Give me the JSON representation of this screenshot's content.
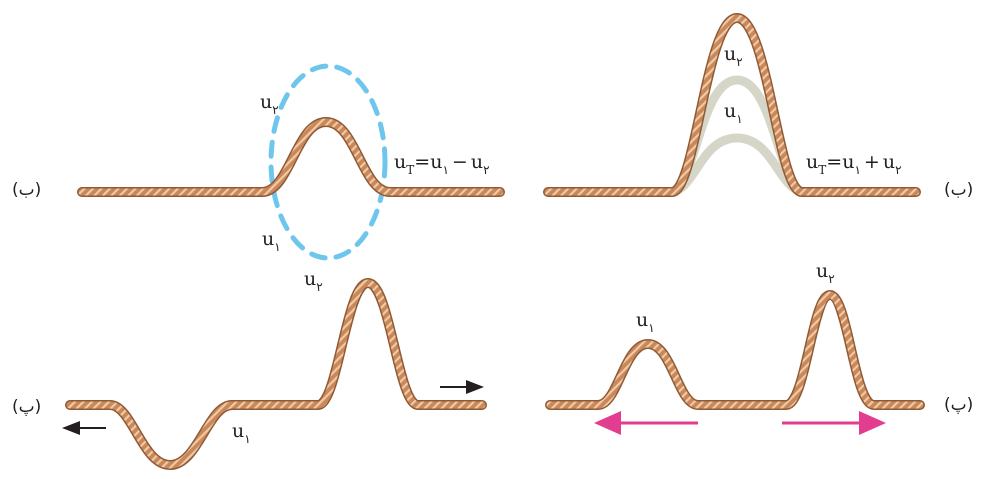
{
  "colors": {
    "rope": "#c9875a",
    "rope_dark": "#8f5a34",
    "rope_light": "#eecaa6",
    "ghost": "#d6d6c8",
    "dash": "#6fc6ec",
    "arrow_pink": "#e23d8e",
    "arrow_black": "#231f20"
  },
  "panels": {
    "top_right": {
      "label": "(ب)",
      "u2": {
        "base": "u",
        "sub": "۲"
      },
      "u1": {
        "base": "u",
        "sub": "۱"
      },
      "sum": {
        "u": "u",
        "T": "T",
        "eq": "=",
        "a": "u",
        "a_sub": "۱",
        "op": "+",
        "b": "u",
        "b_sub": "۲"
      }
    },
    "top_left": {
      "label": "(ب)",
      "u2": {
        "base": "u",
        "sub": "۲"
      },
      "u1": {
        "base": "u",
        "sub": "۱"
      },
      "diff": {
        "u": "u",
        "T": "T",
        "eq": "=",
        "a": "u",
        "a_sub": "۱",
        "op": "−",
        "b": "u",
        "b_sub": "۲"
      }
    },
    "bottom_right": {
      "label": "(پ)",
      "u1": {
        "base": "u",
        "sub": "۱"
      },
      "u2": {
        "base": "u",
        "sub": "۲"
      }
    },
    "bottom_left": {
      "label": "(پ)",
      "u2": {
        "base": "u",
        "sub": "۲"
      },
      "u1": {
        "base": "u",
        "sub": "۱"
      }
    }
  }
}
